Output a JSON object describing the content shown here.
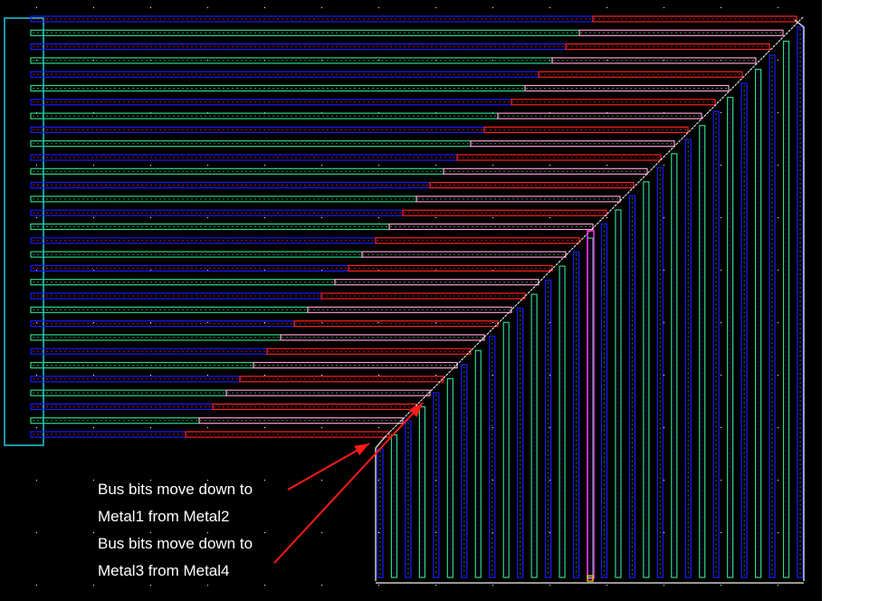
{
  "annotations": [
    {
      "line1": "Bus bits move down to",
      "line2": "Metal1 from Metal2"
    },
    {
      "line1": "Bus bits move down to",
      "line2": "Metal3 from Metal4"
    }
  ],
  "colors": {
    "background": "#000000",
    "frame": "#ffffff",
    "metal1": "#1a1aff",
    "metal2": "#ff2020",
    "metal3": "#2ed88a",
    "metal4": "#ff9ad2",
    "boundary": "#22c8e0",
    "diagonal": "#ffffff",
    "callout_arrow": "#ff1a1a",
    "highlight_wire": "#ff33ff"
  },
  "layers": [
    "metal1",
    "metal2",
    "metal3",
    "metal4"
  ]
}
